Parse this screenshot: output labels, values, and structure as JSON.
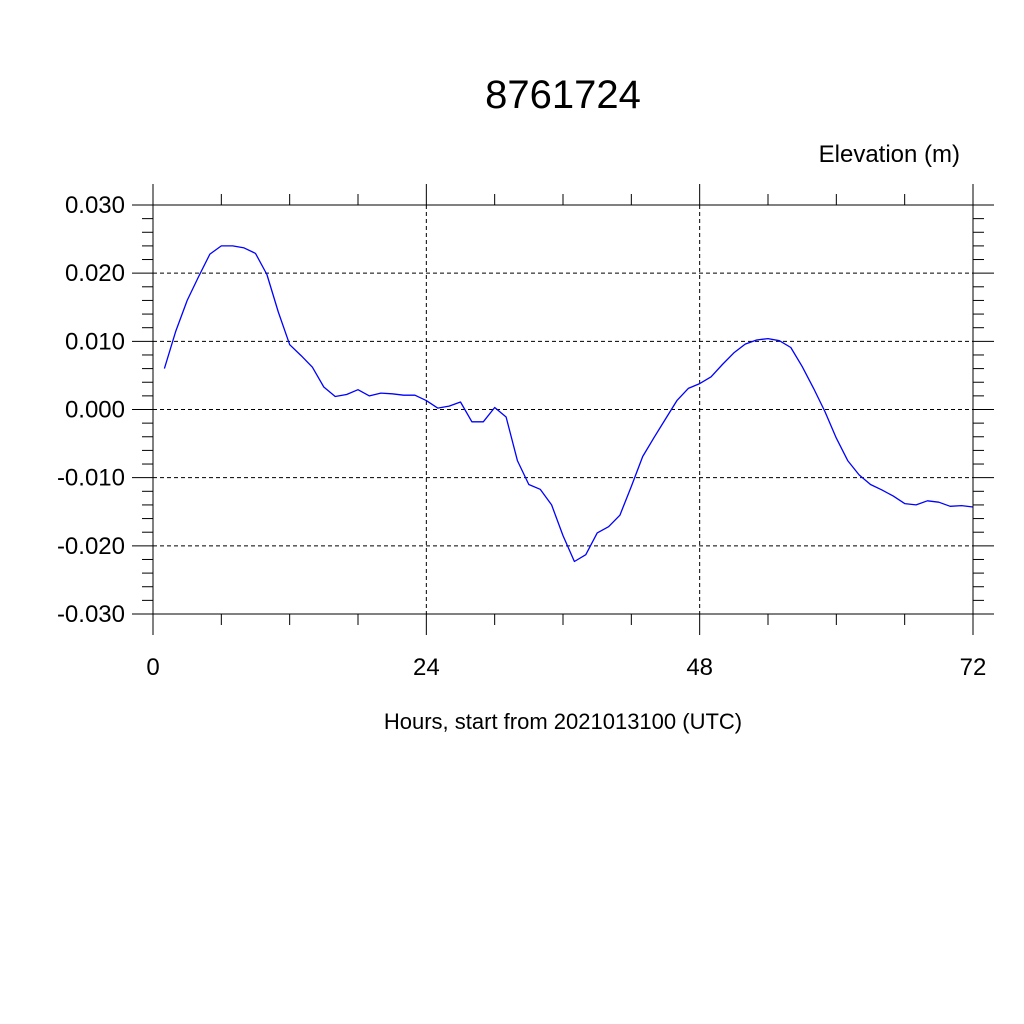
{
  "chart_data": {
    "type": "line",
    "title": "8761724",
    "ylabel": "Elevation (m)",
    "xlabel": "Hours, start from 2021013100 (UTC)",
    "xlim": [
      0,
      72
    ],
    "ylim": [
      -0.03,
      0.03
    ],
    "x_ticks": [
      0,
      24,
      48,
      72
    ],
    "x_tick_labels": [
      "0",
      "24",
      "48",
      "72"
    ],
    "y_ticks": [
      0.03,
      0.02,
      0.01,
      0.0,
      -0.01,
      -0.02,
      -0.03
    ],
    "y_tick_labels": [
      "0.030",
      "0.020",
      "0.010",
      "0.000",
      "-0.010",
      "-0.020",
      "-0.030"
    ],
    "grid": true,
    "series": [
      {
        "color": "#0000ff",
        "x": [
          1,
          2,
          3,
          4,
          5,
          6,
          7,
          8,
          9,
          10,
          11,
          12,
          13,
          14,
          15,
          16,
          17,
          18,
          19,
          20,
          21,
          22,
          23,
          24,
          25,
          26,
          27,
          28,
          29,
          30,
          31,
          32,
          33,
          34,
          35,
          36,
          37,
          38,
          39,
          40,
          41,
          42,
          43,
          44,
          45,
          46,
          47,
          48,
          49,
          50,
          51,
          52,
          53,
          54,
          55,
          56,
          57,
          58,
          59,
          60,
          61,
          62,
          63,
          64,
          65,
          66,
          67,
          68,
          69,
          70,
          71,
          72
        ],
        "values": [
          0.006,
          0.0115,
          0.016,
          0.0195,
          0.0228,
          0.024,
          0.024,
          0.0237,
          0.0229,
          0.0198,
          0.0143,
          0.0095,
          0.0079,
          0.0062,
          0.0033,
          0.0019,
          0.0022,
          0.0029,
          0.002,
          0.0024,
          0.0023,
          0.0021,
          0.0021,
          0.0013,
          0.0002,
          0.0005,
          0.0011,
          -0.0018,
          -0.0018,
          0.0003,
          -0.0011,
          -0.0075,
          -0.011,
          -0.0117,
          -0.014,
          -0.0185,
          -0.0223,
          -0.0213,
          -0.0181,
          -0.0172,
          -0.0155,
          -0.0113,
          -0.0069,
          -0.0041,
          -0.0014,
          0.0013,
          0.0031,
          0.0038,
          0.0048,
          0.0066,
          0.0083,
          0.0096,
          0.0102,
          0.0104,
          0.0101,
          0.0091,
          0.0063,
          0.0031,
          -0.0003,
          -0.0042,
          -0.0075,
          -0.0096,
          -0.011,
          -0.0118,
          -0.0127,
          -0.0138,
          -0.014,
          -0.0134,
          -0.0136,
          -0.0142,
          -0.0141,
          -0.0143
        ]
      }
    ]
  }
}
